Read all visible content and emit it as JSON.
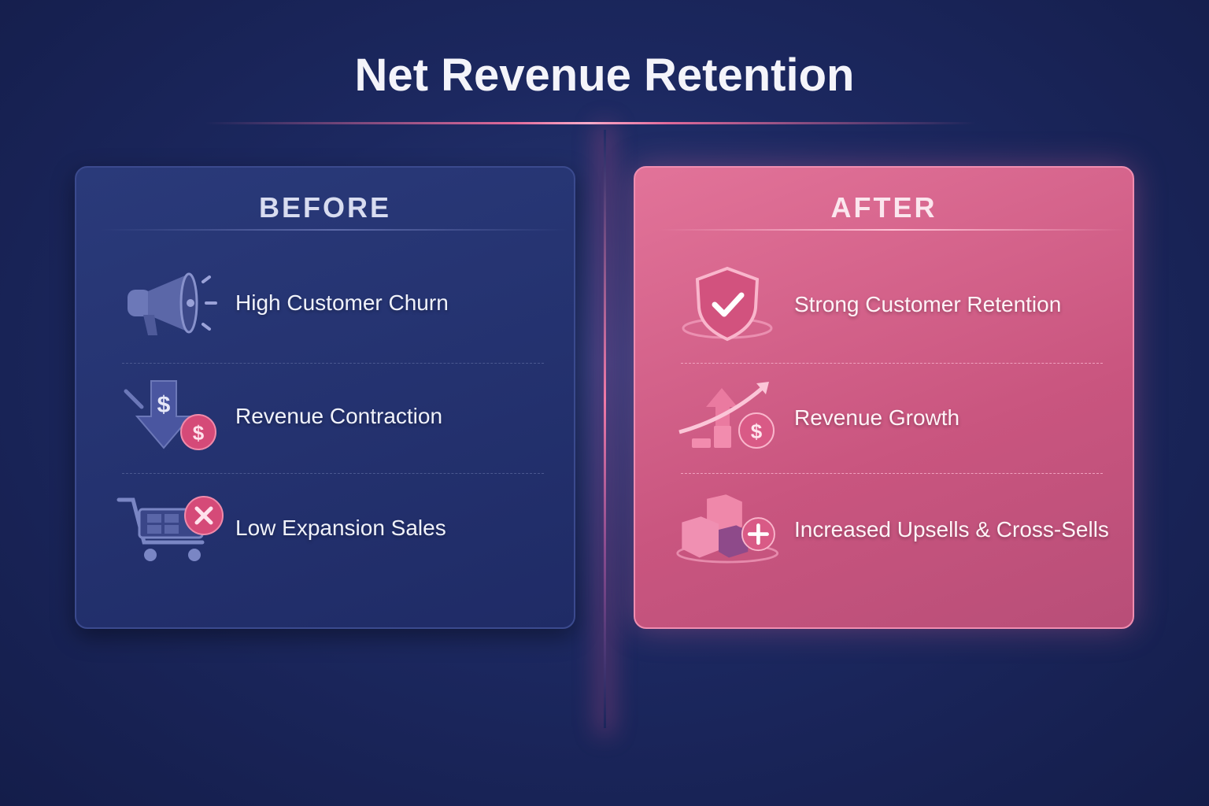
{
  "title": "Net Revenue Retention",
  "colors": {
    "background": "#1c2860",
    "before_card": "#24326f",
    "after_card": "#d3628a",
    "accent": "#e0527e"
  },
  "before": {
    "heading": "BEFORE",
    "items": [
      {
        "label": "High Customer Churn",
        "icon": "megaphone-icon"
      },
      {
        "label": "Revenue Contraction",
        "icon": "down-arrow-dollar-icon"
      },
      {
        "label": "Low Expansion Sales",
        "icon": "cart-x-icon"
      }
    ]
  },
  "after": {
    "heading": "AFTER",
    "items": [
      {
        "label": "Strong Customer Retention",
        "icon": "shield-check-icon"
      },
      {
        "label": "Revenue Growth",
        "icon": "growth-chart-dollar-icon"
      },
      {
        "label": "Increased Upsells & Cross-Sells",
        "icon": "boxes-plus-icon"
      }
    ]
  }
}
